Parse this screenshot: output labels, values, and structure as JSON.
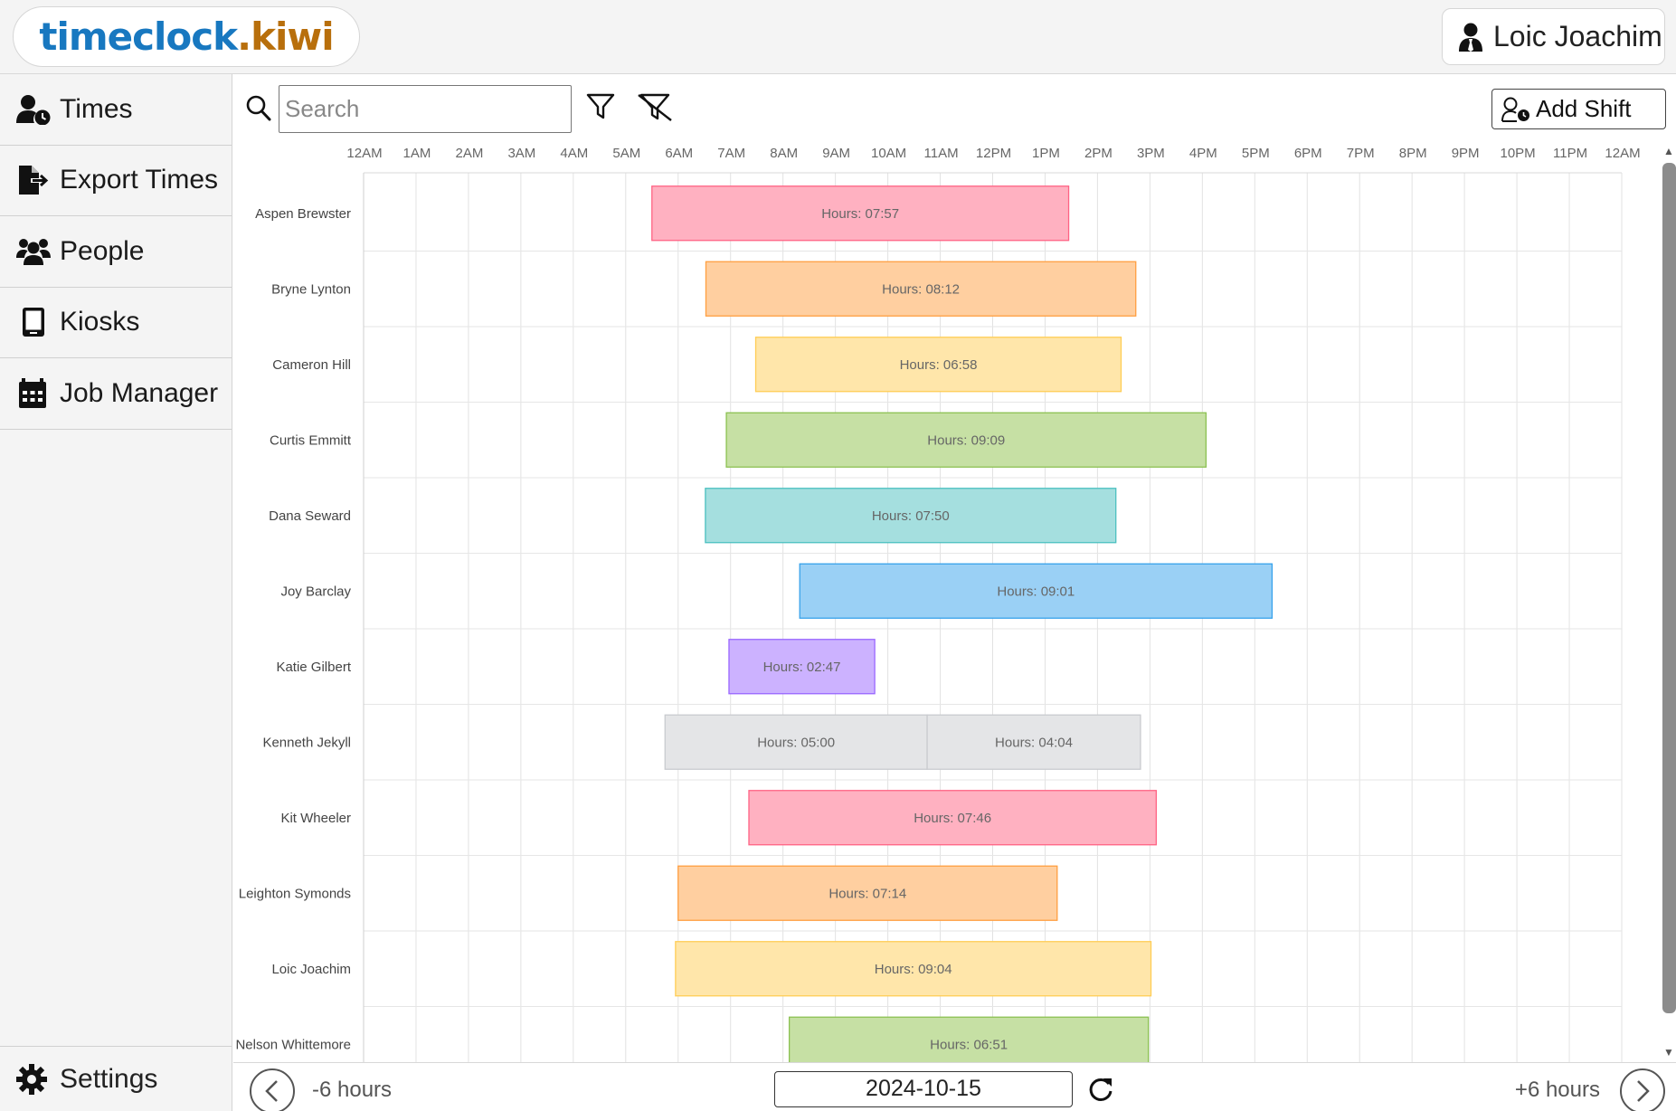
{
  "header": {
    "logo_part1": "timeclock",
    "logo_part2": ".kiwi",
    "user_name": "Loic Joachim"
  },
  "sidebar": {
    "items": [
      {
        "label": "Times",
        "icon": "user-clock-icon"
      },
      {
        "label": "Export Times",
        "icon": "file-export-icon"
      },
      {
        "label": "People",
        "icon": "users-icon"
      },
      {
        "label": "Kiosks",
        "icon": "tablet-icon"
      },
      {
        "label": "Job Manager",
        "icon": "calendar-icon"
      }
    ],
    "settings_label": "Settings"
  },
  "toolbar": {
    "search_placeholder": "Search",
    "search_value": "",
    "add_shift_label": "Add Shift"
  },
  "chart_data": {
    "type": "gantt",
    "x_ticks": [
      "12AM",
      "1AM",
      "2AM",
      "3AM",
      "4AM",
      "5AM",
      "6AM",
      "7AM",
      "8AM",
      "9AM",
      "10AM",
      "11AM",
      "12PM",
      "1PM",
      "2PM",
      "3PM",
      "4PM",
      "5PM",
      "6PM",
      "7PM",
      "8PM",
      "9PM",
      "10PM",
      "11PM",
      "12AM"
    ],
    "x_range_hours": [
      0,
      24
    ],
    "grid": true,
    "rows": [
      {
        "name": "Aspen Brewster",
        "shifts": [
          {
            "start": 5.5,
            "end": 13.45,
            "label": "Hours: 07:57"
          }
        ],
        "color": "#ffb1c1",
        "border": "#ff6384"
      },
      {
        "name": "Bryne Lynton",
        "shifts": [
          {
            "start": 6.53,
            "end": 14.73,
            "label": "Hours: 08:12"
          }
        ],
        "color": "#ffcfa0",
        "border": "#ff9f40"
      },
      {
        "name": "Cameron Hill",
        "shifts": [
          {
            "start": 7.48,
            "end": 14.45,
            "label": "Hours: 06:58"
          }
        ],
        "color": "#ffe6aa",
        "border": "#ffcd56"
      },
      {
        "name": "Curtis Emmitt",
        "shifts": [
          {
            "start": 6.92,
            "end": 16.07,
            "label": "Hours: 09:09"
          }
        ],
        "color": "#c6e0a4",
        "border": "#8cc152"
      },
      {
        "name": "Dana Seward",
        "shifts": [
          {
            "start": 6.52,
            "end": 14.35,
            "label": "Hours: 07:50"
          }
        ],
        "color": "#a5dfdf",
        "border": "#4bc0c0"
      },
      {
        "name": "Joy Barclay",
        "shifts": [
          {
            "start": 8.32,
            "end": 17.33,
            "label": "Hours: 09:01"
          }
        ],
        "color": "#9ad0f5",
        "border": "#36a2eb"
      },
      {
        "name": "Katie Gilbert",
        "shifts": [
          {
            "start": 6.97,
            "end": 9.75,
            "label": "Hours: 02:47"
          }
        ],
        "color": "#ccb2ff",
        "border": "#9966ff"
      },
      {
        "name": "Kenneth  Jekyll",
        "shifts": [
          {
            "start": 5.75,
            "end": 10.75,
            "label": "Hours: 05:00"
          },
          {
            "start": 10.75,
            "end": 14.82,
            "label": "Hours: 04:04"
          }
        ],
        "color": "#e4e5e7",
        "border": "#c9cbcf"
      },
      {
        "name": "Kit Wheeler",
        "shifts": [
          {
            "start": 7.35,
            "end": 15.12,
            "label": "Hours: 07:46"
          }
        ],
        "color": "#ffb1c1",
        "border": "#ff6384"
      },
      {
        "name": "Leighton Symonds",
        "shifts": [
          {
            "start": 6.0,
            "end": 13.23,
            "label": "Hours: 07:14"
          }
        ],
        "color": "#ffcfa0",
        "border": "#ff9f40"
      },
      {
        "name": "Loic Joachim",
        "shifts": [
          {
            "start": 5.95,
            "end": 15.02,
            "label": "Hours: 09:04"
          }
        ],
        "color": "#ffe6aa",
        "border": "#ffcd56"
      },
      {
        "name": "Nelson Whittemore",
        "shifts": [
          {
            "start": 8.12,
            "end": 14.97,
            "label": "Hours: 06:51"
          }
        ],
        "color": "#c6e0a4",
        "border": "#8cc152"
      }
    ]
  },
  "footer": {
    "prev_label": "-6 hours",
    "next_label": "+6 hours",
    "date_value": "2024-10-15"
  }
}
